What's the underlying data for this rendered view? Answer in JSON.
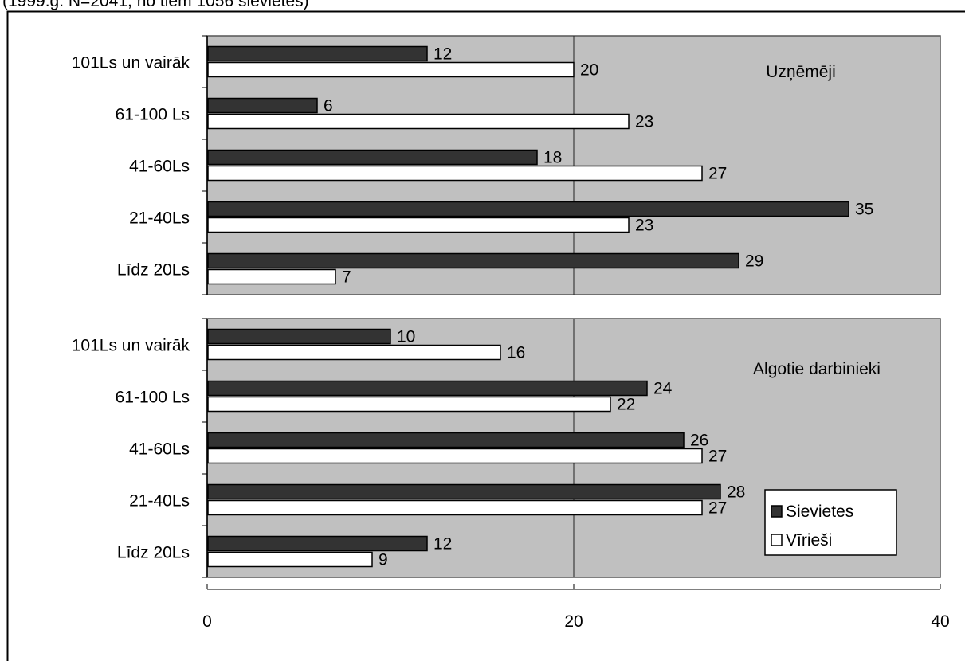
{
  "header": {
    "subtitle": "(1999.g. N=2041, no tiem 1056 sievietes)"
  },
  "chart_data": [
    {
      "type": "bar",
      "orientation": "horizontal",
      "panel_label": "Uzņēmēji",
      "categories": [
        "101Ls un vairāk",
        "61-100 Ls",
        "41-60Ls",
        "21-40Ls",
        "Līdz 20Ls"
      ],
      "series": [
        {
          "name": "Sievietes",
          "values": [
            12,
            6,
            18,
            35,
            29
          ],
          "color": "#333333"
        },
        {
          "name": "Vīrieši",
          "values": [
            20,
            23,
            27,
            23,
            7
          ],
          "color": "#ffffff"
        }
      ],
      "xlim": [
        0,
        40
      ],
      "grid": true,
      "background": "#c0c0c0"
    },
    {
      "type": "bar",
      "orientation": "horizontal",
      "panel_label": "Algotie darbinieki",
      "categories": [
        "101Ls un vairāk",
        "61-100 Ls",
        "41-60Ls",
        "21-40Ls",
        "Līdz 20Ls"
      ],
      "series": [
        {
          "name": "Sievietes",
          "values": [
            10,
            24,
            26,
            28,
            12
          ],
          "color": "#333333"
        },
        {
          "name": "Vīrieši",
          "values": [
            16,
            22,
            27,
            27,
            9
          ],
          "color": "#ffffff"
        }
      ],
      "xlim": [
        0,
        40
      ],
      "xticks": [
        "0",
        "20",
        "40"
      ],
      "grid": true,
      "background": "#c0c0c0",
      "legend": {
        "position": "bottom-right",
        "entries": [
          "Sievietes",
          "Vīrieši"
        ]
      }
    }
  ]
}
